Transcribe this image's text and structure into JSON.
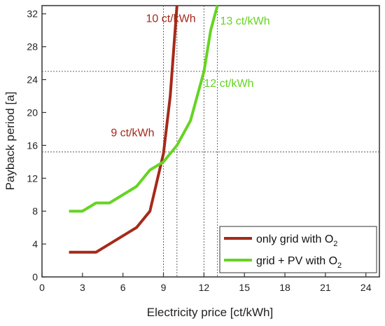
{
  "chart_data": {
    "type": "line",
    "xlabel": "Electricity price [ct/kWh]",
    "ylabel": "Payback period [a]",
    "xlim": [
      0,
      25
    ],
    "ylim": [
      0,
      33
    ],
    "xticks": [
      0,
      3,
      6,
      9,
      12,
      15,
      18,
      21,
      24
    ],
    "yticks": [
      0,
      4,
      8,
      12,
      16,
      20,
      24,
      28,
      32
    ],
    "grid": false,
    "legend_position": "bottom-right",
    "reference_lines": {
      "vertical_x": [
        9,
        10,
        12,
        13
      ],
      "horizontal_y": [
        15.2,
        25
      ]
    },
    "series": [
      {
        "name": "only grid with O",
        "subscript": "2",
        "color": "#a52a1a",
        "x": [
          2,
          4,
          7,
          8,
          9,
          9.5,
          10
        ],
        "y": [
          3,
          3,
          6,
          8,
          15,
          22,
          33
        ]
      },
      {
        "name": "grid + PV with O",
        "subscript": "2",
        "color": "#66d422",
        "x": [
          2,
          3,
          4,
          5,
          7,
          8,
          9,
          10,
          11,
          12,
          12.5,
          13
        ],
        "y": [
          8,
          8,
          9,
          9,
          11,
          13,
          14,
          16,
          19,
          25,
          30,
          33
        ]
      }
    ],
    "annotations": [
      {
        "text": "10 ct/kWh",
        "color": "#a52a1a",
        "x": 7.7,
        "y": 31.0
      },
      {
        "text": "9 ct/kWh",
        "color": "#a52a1a",
        "x": 5.1,
        "y": 17.1
      },
      {
        "text": "13 ct/kWh",
        "color": "#66d422",
        "x": 13.2,
        "y": 30.7
      },
      {
        "text": "12 ct/kWh",
        "color": "#66d422",
        "x": 12.0,
        "y": 23.1
      }
    ]
  }
}
